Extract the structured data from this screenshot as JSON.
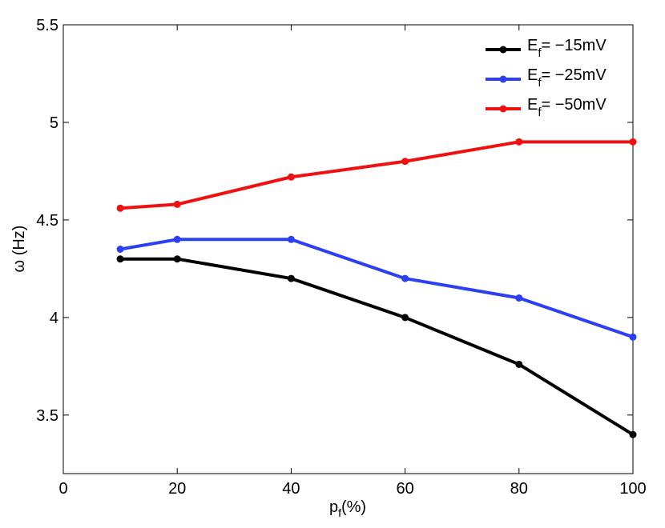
{
  "chart_data": {
    "type": "line",
    "x": [
      10,
      20,
      40,
      60,
      80,
      100
    ],
    "series": [
      {
        "name": "E_f = -15mV",
        "label_main": "E",
        "label_sub": "f",
        "label_rest": "= −15mV",
        "color": "#000000",
        "values": [
          4.3,
          4.3,
          4.2,
          4.0,
          3.76,
          3.4
        ]
      },
      {
        "name": "E_f = -25mV",
        "label_main": "E",
        "label_sub": "f",
        "label_rest": "= −25mV",
        "color": "#2b3ff5",
        "values": [
          4.35,
          4.4,
          4.4,
          4.2,
          4.1,
          3.9
        ]
      },
      {
        "name": "E_f = -50mV",
        "label_main": "E",
        "label_sub": "f",
        "label_rest": "= −50mV",
        "color": "#f01010",
        "values": [
          4.56,
          4.58,
          4.72,
          4.8,
          4.9,
          4.9
        ]
      }
    ],
    "xlim": [
      0,
      100
    ],
    "ylim": [
      3.2,
      5.5
    ],
    "xticks": [
      0,
      20,
      40,
      60,
      80,
      100
    ],
    "xtick_labels": [
      "0",
      "20",
      "40",
      "60",
      "80",
      "100"
    ],
    "yticks": [
      3.5,
      4,
      4.5,
      5,
      5.5
    ],
    "ytick_labels": [
      "3.5",
      "4",
      "4.5",
      "5",
      "5.5"
    ],
    "xlabel_main": "p",
    "xlabel_sub": "f",
    "xlabel_rest": "(%)",
    "ylabel": "ω (Hz)",
    "legend_position": "top-right",
    "grid": false
  }
}
